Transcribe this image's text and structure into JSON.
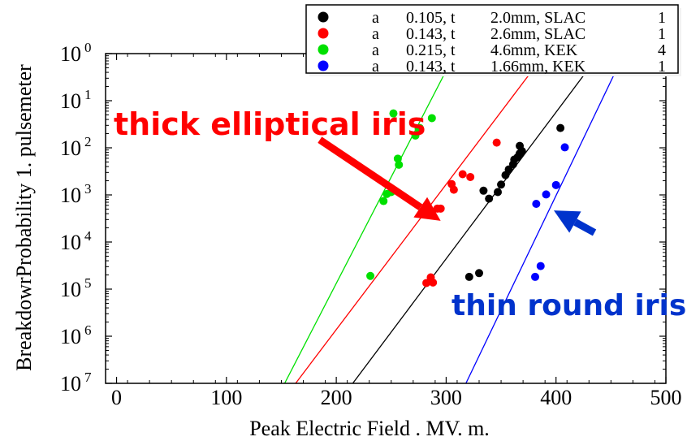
{
  "chart_data": {
    "type": "scatter",
    "xlabel": "Peak Electric Field . MV. m.",
    "ylabel": "BreakdowrProbability 1. pulsemeter",
    "xlim": [
      -10,
      500
    ],
    "ylim": [
      -7,
      0
    ],
    "yscale": "log",
    "grid": false,
    "legend_position": "top-right",
    "x_ticks": [
      0,
      100,
      200,
      300,
      400,
      500
    ],
    "y_ticks": [
      {
        "value": 0,
        "base": "10",
        "exp": "0"
      },
      {
        "value": -1,
        "base": "10",
        "exp": "1"
      },
      {
        "value": -2,
        "base": "10",
        "exp": "2"
      },
      {
        "value": -3,
        "base": "10",
        "exp": "3"
      },
      {
        "value": -4,
        "base": "10",
        "exp": "4"
      },
      {
        "value": -5,
        "base": "10",
        "exp": "5"
      },
      {
        "value": -6,
        "base": "10",
        "exp": "6"
      },
      {
        "value": -7,
        "base": "10",
        "exp": "7"
      }
    ],
    "series": [
      {
        "name": "a 0.105, t 2.0mm, SLAC 1",
        "legend_parts": [
          "a",
          "0.105, t",
          "2.0mm, SLAC",
          "1"
        ],
        "color": "#000000",
        "points": [
          [
            321,
            -4.74
          ],
          [
            330,
            -4.66
          ],
          [
            334,
            -2.91
          ],
          [
            339,
            -3.08
          ],
          [
            347,
            -2.94
          ],
          [
            350,
            -2.78
          ],
          [
            354,
            -2.58
          ],
          [
            357,
            -2.46
          ],
          [
            361,
            -2.35
          ],
          [
            362,
            -2.25
          ],
          [
            365,
            -2.2
          ],
          [
            367,
            -2.12
          ],
          [
            369,
            -2.07
          ],
          [
            367,
            -1.96
          ],
          [
            404,
            -1.58
          ]
        ],
        "fit": [
          [
            215,
            -7
          ],
          [
            440,
            0
          ]
        ]
      },
      {
        "name": "a 0.143, t 2.6mm, SLAC 1",
        "legend_parts": [
          "a",
          "0.143, t",
          "2.6mm, SLAC",
          "1"
        ],
        "color": "#ff0000",
        "points": [
          [
            282,
            -4.87
          ],
          [
            286,
            -4.75
          ],
          [
            288,
            -4.86
          ],
          [
            292,
            -3.29
          ],
          [
            295,
            -3.29
          ],
          [
            305,
            -2.77
          ],
          [
            307,
            -2.89
          ],
          [
            315,
            -2.56
          ],
          [
            322,
            -2.62
          ],
          [
            346,
            -1.89
          ]
        ],
        "fit": [
          [
            163,
            -7
          ],
          [
            390,
            0
          ]
        ]
      },
      {
        "name": "a 0.215, t 4.6mm, KEK 4",
        "legend_parts": [
          "a",
          "0.215, t",
          "4.6mm, KEK",
          "4"
        ],
        "color": "#00e000",
        "points": [
          [
            231,
            -4.72
          ],
          [
            243,
            -3.13
          ],
          [
            246,
            -2.98
          ],
          [
            250,
            -2.94
          ],
          [
            252,
            -1.27
          ],
          [
            256,
            -2.23
          ],
          [
            257,
            -2.36
          ],
          [
            272,
            -1.74
          ],
          [
            275,
            -1.6
          ],
          [
            276,
            -1.58
          ],
          [
            287,
            -1.37
          ]
        ],
        "fit": [
          [
            153,
            -7
          ],
          [
            308,
            0
          ]
        ]
      },
      {
        "name": "a 0.143, t 1.66mm, KEK 1",
        "legend_parts": [
          "a",
          "0.143, t",
          "1.66mm, KEK",
          "1"
        ],
        "color": "#0000ff",
        "points": [
          [
            381,
            -4.74
          ],
          [
            382,
            -3.19
          ],
          [
            386,
            -4.51
          ],
          [
            391,
            -2.99
          ],
          [
            400,
            -2.79
          ],
          [
            408,
            -1.99
          ]
        ],
        "fit": [
          [
            318,
            -7
          ],
          [
            462,
            0
          ]
        ]
      }
    ],
    "annotations": [
      {
        "text": "thick elliptical iris",
        "color": "#ff0000",
        "arrow": {
          "from": [
            185,
            -1.83
          ],
          "to": [
            295,
            -3.55
          ]
        }
      },
      {
        "text": "thin round iris",
        "color": "#0033cc",
        "arrow": {
          "from": [
            435,
            -3.8
          ],
          "to": [
            398,
            -3.33
          ]
        }
      }
    ]
  }
}
